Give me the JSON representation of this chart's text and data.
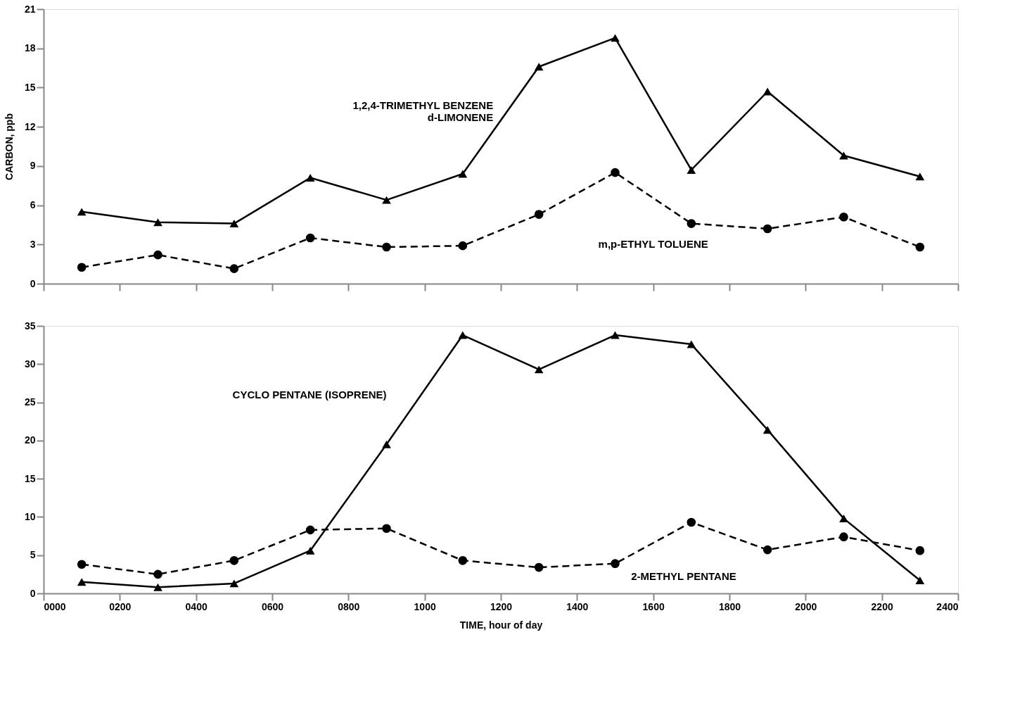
{
  "chart_data": [
    {
      "type": "line",
      "ylabel": "CARBON, ppb",
      "x": [
        100,
        300,
        500,
        700,
        900,
        1100,
        1300,
        1500,
        1700,
        1900,
        2100,
        2300
      ],
      "xlim": [
        0,
        2400
      ],
      "xticks": [
        0,
        200,
        400,
        600,
        800,
        1000,
        1200,
        1400,
        1600,
        1800,
        2000,
        2200,
        2400
      ],
      "ylim": [
        0,
        21
      ],
      "yticks": [
        0,
        3,
        6,
        9,
        12,
        15,
        18,
        21
      ],
      "tick_labels": "y",
      "grid": false,
      "series": [
        {
          "name": "1,2,4-TRIMETHYL BENZENE\nd-LIMONENE",
          "color": "#000000",
          "marker": "triangle",
          "line_style": "solid",
          "values": [
            5.5,
            4.7,
            4.6,
            8.1,
            6.4,
            8.4,
            16.6,
            18.8,
            8.7,
            14.7,
            9.8,
            8.2
          ]
        },
        {
          "name": "m,p-ETHYL TOLUENE",
          "color": "#000000",
          "marker": "circle",
          "line_style": "dashed",
          "values": [
            1.25,
            2.2,
            1.15,
            3.5,
            2.8,
            2.9,
            5.3,
            8.5,
            4.6,
            4.2,
            5.1,
            2.8
          ]
        }
      ]
    },
    {
      "type": "line",
      "xlabel": "TIME, hour of day",
      "x": [
        100,
        300,
        500,
        700,
        900,
        1100,
        1300,
        1500,
        1700,
        1900,
        2100,
        2300
      ],
      "xlim": [
        0,
        2400
      ],
      "xticks": [
        {
          "value": 0,
          "label": "0000"
        },
        {
          "value": 200,
          "label": "0200"
        },
        {
          "value": 400,
          "label": "0400"
        },
        {
          "value": 600,
          "label": "0600"
        },
        {
          "value": 800,
          "label": "0800"
        },
        {
          "value": 1000,
          "label": "1000"
        },
        {
          "value": 1200,
          "label": "1200"
        },
        {
          "value": 1400,
          "label": "1400"
        },
        {
          "value": 1600,
          "label": "1600"
        },
        {
          "value": 1800,
          "label": "1800"
        },
        {
          "value": 2000,
          "label": "2000"
        },
        {
          "value": 2200,
          "label": "2200"
        },
        {
          "value": 2400,
          "label": "2400"
        }
      ],
      "ylim": [
        0,
        35
      ],
      "yticks": [
        0,
        5,
        10,
        15,
        20,
        25,
        30,
        35
      ],
      "grid": false,
      "series": [
        {
          "name": "CYCLO PENTANE (ISOPRENE)",
          "color": "#000000",
          "marker": "triangle",
          "line_style": "solid",
          "values": [
            1.5,
            0.8,
            1.3,
            5.6,
            19.5,
            33.8,
            29.3,
            33.8,
            32.6,
            21.4,
            9.8,
            1.7
          ]
        },
        {
          "name": "2-METHYL PENTANE",
          "color": "#000000",
          "marker": "circle",
          "line_style": "dashed",
          "values": [
            3.8,
            2.5,
            4.3,
            8.3,
            8.5,
            4.3,
            3.4,
            3.9,
            9.3,
            5.7,
            7.4,
            5.6
          ]
        }
      ]
    }
  ]
}
